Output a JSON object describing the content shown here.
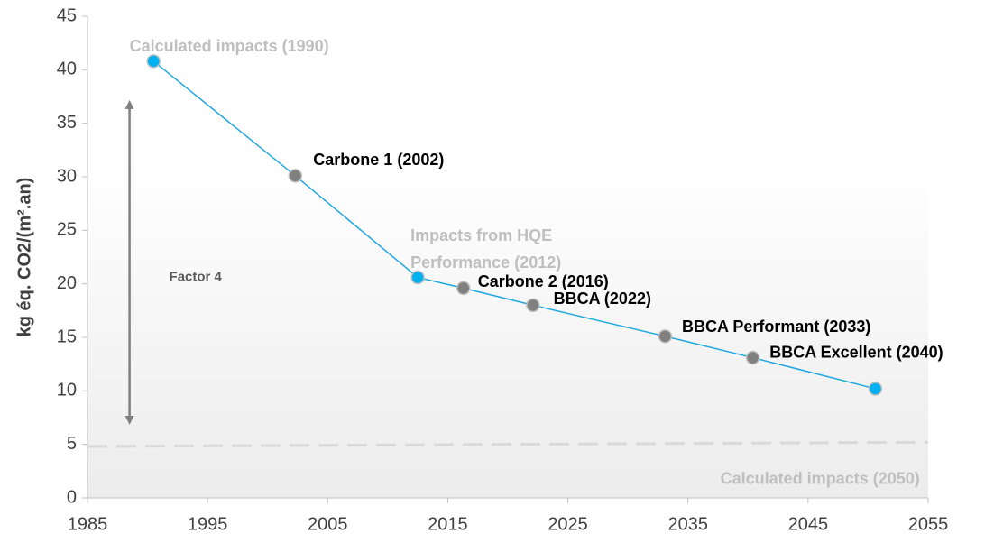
{
  "chart_data": {
    "type": "line",
    "ylabel": "kg éq. CO2/(m².an)",
    "xlim": [
      1985,
      2055
    ],
    "xticks": [
      1985,
      1995,
      2005,
      2015,
      2025,
      2035,
      2045,
      2055
    ],
    "ylim": [
      0,
      45
    ],
    "yticks": [
      0,
      5,
      10,
      15,
      20,
      25,
      30,
      35,
      40,
      45
    ],
    "series": [
      {
        "color": "#1fa7df",
        "point_colors": [
          "#00b0f0",
          "#808080",
          "#00b0f0",
          "#808080",
          "#808080",
          "#808080",
          "#808080",
          "#00b0f0"
        ],
        "x": [
          1990.5,
          2002.3,
          2012.5,
          2016.3,
          2022.1,
          2033.1,
          2040.4,
          2050.6
        ],
        "values": [
          40.8,
          30.1,
          20.6,
          19.6,
          18.0,
          15.1,
          13.1,
          10.2
        ]
      },
      {
        "color": "#d9d9d9",
        "dashed": true,
        "x": [
          1985,
          2055
        ],
        "values": [
          4.8,
          5.2
        ]
      }
    ],
    "arrow": {
      "x": 1988.5,
      "y": [
        37,
        7
      ],
      "color": "#808080"
    },
    "annotations": [
      {
        "text": "Calculated impacts (1990)",
        "x": 1988.5,
        "y": 42.1,
        "color": "#bfbfbf"
      },
      {
        "text": "Carbone 1 (2002)",
        "x": 2003.8,
        "y": 31.5,
        "color": "#000000"
      },
      {
        "text": "Impacts from HQE",
        "x": 2011.9,
        "y": 24.4,
        "color": "#bfbfbf"
      },
      {
        "text": "Performance (2012)",
        "x": 2011.9,
        "y": 21.9,
        "color": "#bfbfbf"
      },
      {
        "text": "Carbone 2 (2016)",
        "x": 2017.5,
        "y": 20.1,
        "color": "#000000"
      },
      {
        "text": "BBCA (2022)",
        "x": 2023.8,
        "y": 18.5,
        "color": "#000000"
      },
      {
        "text": "BBCA Performant (2033)",
        "x": 2034.5,
        "y": 15.9,
        "color": "#000000"
      },
      {
        "text": "BBCA Excellent (2040)",
        "x": 2041.8,
        "y": 13.5,
        "color": "#000000"
      },
      {
        "text": "Calculated impacts (2050)",
        "x": 2037.7,
        "y": 1.7,
        "color": "#bfbfbf"
      },
      {
        "text": "Factor 4",
        "x": 1991.8,
        "y": 20.6,
        "color": "#595959",
        "small": true
      }
    ]
  }
}
